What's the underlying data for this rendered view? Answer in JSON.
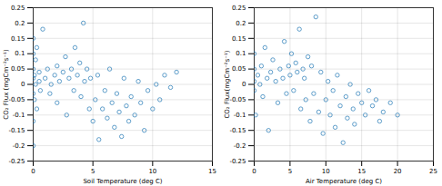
{
  "chart_data": [
    {
      "type": "scatter",
      "xlabel": "Soil Temperature (deg C)",
      "ylabel": "CO₂ Flux (mgCm⁻²s⁻¹)",
      "color": "#1f77b4",
      "marker": "circle",
      "grid": true,
      "xlim": [
        0,
        15
      ],
      "xticks": [
        0,
        5,
        10,
        15
      ],
      "ylim": [
        -0.25,
        0.25
      ],
      "yticks": [
        -0.25,
        -0.2,
        -0.15,
        -0.1,
        -0.05,
        0,
        0.05,
        0.1,
        0.15,
        0.2,
        0.25
      ],
      "x": [
        0,
        0,
        0,
        0,
        0,
        0,
        0,
        0.1,
        0.1,
        0.2,
        0.2,
        0.3,
        0.3,
        0.5,
        0.5,
        0.6,
        0.8,
        1,
        1.2,
        1.4,
        1.5,
        1.8,
        2,
        2,
        2.2,
        2.5,
        2.7,
        2.8,
        3,
        3.2,
        3.4,
        3.5,
        3.7,
        3.9,
        4,
        4.2,
        4.3,
        4.5,
        4.7,
        4.8,
        5,
        5.2,
        5.4,
        5.5,
        5.8,
        6,
        6.2,
        6.4,
        6.6,
        6.8,
        7,
        7.2,
        7.4,
        7.6,
        7.8,
        8,
        8.2,
        8.5,
        8.8,
        9,
        9.3,
        9.6,
        10,
        10.3,
        10.6,
        11,
        11.5,
        12
      ],
      "values": [
        0.02,
        0.05,
        -0.03,
        0.1,
        -0.12,
        0.15,
        -0.2,
        0.03,
        -0.05,
        0,
        0.08,
        0.12,
        -0.08,
        0.01,
        0.04,
        -0.02,
        0.18,
        0.02,
        0.05,
        -0.03,
        0,
        0.03,
        0.06,
        -0.06,
        0.01,
        0.04,
        0.09,
        -0.1,
        0.02,
        0.05,
        -0.02,
        0.12,
        0.03,
        0.07,
        -0.04,
        0.2,
        0.01,
        0.05,
        -0.08,
        0.02,
        -0.12,
        -0.05,
        0.03,
        -0.18,
        -0.08,
        -0.02,
        -0.11,
        0.05,
        -0.06,
        -0.14,
        -0.03,
        -0.09,
        -0.17,
        0.02,
        -0.07,
        -0.12,
        -0.04,
        -0.1,
        0.01,
        -0.06,
        -0.15,
        -0.02,
        -0.08,
        0,
        -0.05,
        0.03,
        -0.01,
        0.04
      ]
    },
    {
      "type": "scatter",
      "xlabel": "Air Temperature (deg C)",
      "ylabel": "CO₂ Flux(mgCm⁻²s⁻¹)",
      "color": "#1f77b4",
      "marker": "circle",
      "grid": true,
      "xlim": [
        0,
        25
      ],
      "xticks": [
        0,
        5,
        10,
        15,
        20,
        25
      ],
      "ylim": [
        -0.25,
        0.25
      ],
      "yticks": [
        -0.25,
        -0.2,
        -0.15,
        -0.1,
        -0.05,
        0,
        0.05,
        0.1,
        0.15,
        0.2,
        0.25
      ],
      "x": [
        0,
        0,
        0,
        0,
        0.2,
        0.5,
        0.8,
        1,
        1.2,
        1.5,
        1.8,
        2,
        2.3,
        2.6,
        3,
        3.3,
        3.6,
        4,
        4.2,
        4.5,
        4.8,
        5,
        5.2,
        5.5,
        5.8,
        6,
        6.3,
        6.5,
        6.8,
        7,
        7.2,
        7.5,
        7.8,
        8,
        8.3,
        8.6,
        9,
        9.3,
        9.6,
        10,
        10.3,
        10.6,
        11,
        11.3,
        11.6,
        12,
        12.4,
        12.8,
        13,
        13.4,
        13.8,
        14,
        14.5,
        15,
        15.5,
        16,
        16.5,
        17,
        17.5,
        18,
        19,
        20
      ],
      "values": [
        0.01,
        0.05,
        -0.02,
        0.1,
        -0.1,
        0.03,
        0,
        0.06,
        -0.04,
        0.12,
        0.02,
        -0.15,
        0.04,
        0.08,
        0.01,
        -0.06,
        0.05,
        0.02,
        0.14,
        -0.03,
        0.06,
        0.03,
        0.1,
        -0.02,
        0.07,
        0.04,
        0.18,
        -0.08,
        0.05,
        0.02,
        -0.05,
        0.09,
        -0.12,
        0.06,
        -0.03,
        0.22,
        -0.09,
        0.04,
        -0.16,
        -0.05,
        0.01,
        -0.1,
        -0.02,
        -0.14,
        0.03,
        -0.07,
        -0.19,
        -0.04,
        -0.11,
        0,
        -0.08,
        -0.13,
        -0.03,
        -0.06,
        -0.1,
        -0.02,
        -0.07,
        -0.05,
        -0.12,
        -0.09,
        -0.06,
        -0.1
      ]
    }
  ]
}
